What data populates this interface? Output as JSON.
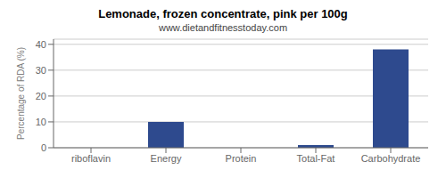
{
  "chart_data": {
    "type": "bar",
    "title": "Lemonade, frozen concentrate, pink per 100g",
    "subtitle": "www.dietandfitnesstoday.com",
    "categories": [
      "riboflavin",
      "Energy",
      "Protein",
      "Total-Fat",
      "Carbohydrate"
    ],
    "values": [
      0,
      10,
      0,
      1,
      38
    ],
    "color": "#2e4a8e",
    "ylim": [
      0,
      42
    ],
    "yticks": [
      0,
      10,
      20,
      30,
      40
    ],
    "ylabel": "Percentage of RDA (%)",
    "grid": true
  }
}
